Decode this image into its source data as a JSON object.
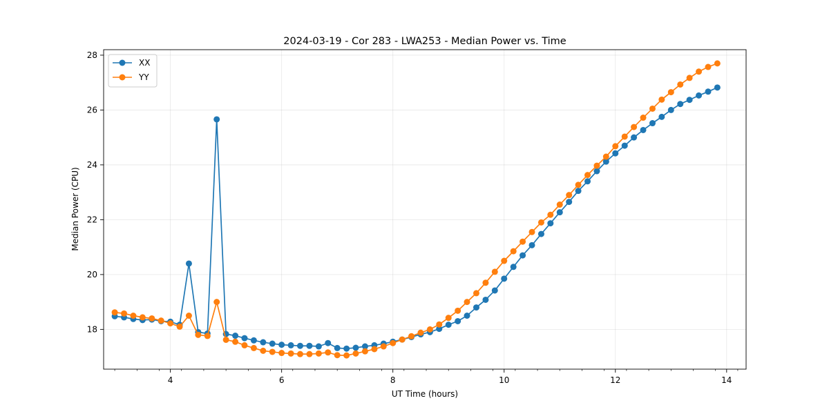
{
  "chart_data": {
    "type": "line",
    "title": "2024-03-19 - Cor 283 - LWA253 - Median Power vs. Time",
    "xlabel": "UT Time (hours)",
    "ylabel": "Median Power (CPU)",
    "xlim": [
      2.8,
      14.35
    ],
    "ylim": [
      16.55,
      28.2
    ],
    "xticks": [
      4,
      6,
      8,
      10,
      12,
      14
    ],
    "xtick_labels": [
      "4",
      "6",
      "8",
      "10",
      "12",
      "14"
    ],
    "yticks": [
      18,
      20,
      22,
      24,
      26,
      28
    ],
    "ytick_labels": [
      "18",
      "20",
      "22",
      "24",
      "26",
      "28"
    ],
    "grid": true,
    "legend_position": "top-left",
    "x": [
      3.0,
      3.167,
      3.333,
      3.5,
      3.667,
      3.833,
      4.0,
      4.167,
      4.333,
      4.5,
      4.667,
      4.833,
      5.0,
      5.167,
      5.333,
      5.5,
      5.667,
      5.833,
      6.0,
      6.167,
      6.333,
      6.5,
      6.667,
      6.833,
      7.0,
      7.167,
      7.333,
      7.5,
      7.667,
      7.833,
      8.0,
      8.167,
      8.333,
      8.5,
      8.667,
      8.833,
      9.0,
      9.167,
      9.333,
      9.5,
      9.667,
      9.833,
      10.0,
      10.167,
      10.333,
      10.5,
      10.667,
      10.833,
      11.0,
      11.167,
      11.333,
      11.5,
      11.667,
      11.833,
      12.0,
      12.167,
      12.333,
      12.5,
      12.667,
      12.833,
      13.0,
      13.167,
      13.333,
      13.5,
      13.667,
      13.833
    ],
    "series": [
      {
        "name": "XX",
        "color": "#1f77b4",
        "values": [
          18.48,
          18.44,
          18.38,
          18.34,
          18.36,
          18.3,
          18.28,
          18.17,
          20.4,
          17.9,
          17.85,
          25.66,
          17.83,
          17.77,
          17.68,
          17.6,
          17.53,
          17.48,
          17.44,
          17.42,
          17.4,
          17.4,
          17.38,
          17.5,
          17.32,
          17.3,
          17.33,
          17.38,
          17.42,
          17.48,
          17.55,
          17.63,
          17.72,
          17.82,
          17.9,
          18.02,
          18.17,
          18.3,
          18.5,
          18.8,
          19.08,
          19.42,
          19.85,
          20.28,
          20.7,
          21.07,
          21.48,
          21.87,
          22.27,
          22.65,
          23.05,
          23.4,
          23.77,
          24.12,
          24.42,
          24.7,
          25.0,
          25.27,
          25.52,
          25.75,
          26.0,
          26.22,
          26.37,
          26.53,
          26.67,
          26.82
        ]
      },
      {
        "name": "YY",
        "color": "#ff7f0e",
        "values": [
          18.62,
          18.58,
          18.5,
          18.44,
          18.4,
          18.32,
          18.22,
          18.1,
          18.5,
          17.8,
          17.76,
          19.0,
          17.62,
          17.55,
          17.42,
          17.32,
          17.22,
          17.18,
          17.14,
          17.12,
          17.1,
          17.1,
          17.12,
          17.16,
          17.06,
          17.05,
          17.12,
          17.2,
          17.28,
          17.38,
          17.5,
          17.63,
          17.75,
          17.88,
          18.0,
          18.18,
          18.42,
          18.68,
          19.0,
          19.32,
          19.7,
          20.1,
          20.5,
          20.85,
          21.2,
          21.55,
          21.9,
          22.18,
          22.55,
          22.9,
          23.27,
          23.63,
          23.97,
          24.3,
          24.68,
          25.03,
          25.38,
          25.72,
          26.05,
          26.38,
          26.65,
          26.93,
          27.17,
          27.4,
          27.57,
          27.7
        ]
      }
    ]
  }
}
